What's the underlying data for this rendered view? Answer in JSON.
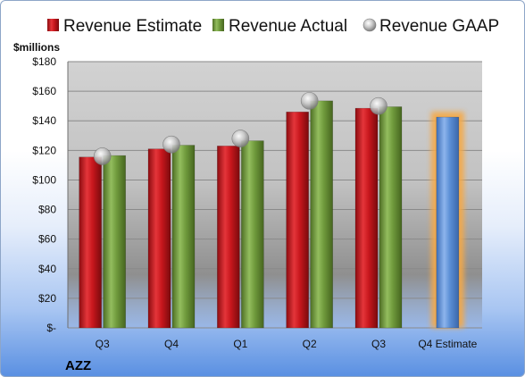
{
  "chart_data": {
    "type": "bar",
    "ticker": "AZZ",
    "ylabel": "$millions",
    "ylim": [
      0,
      180
    ],
    "yticks": [
      0,
      20,
      40,
      60,
      80,
      100,
      120,
      140,
      160,
      180
    ],
    "ytick_labels": [
      "$-",
      "$20",
      "$40",
      "$60",
      "$80",
      "$100",
      "$120",
      "$140",
      "$160",
      "$180"
    ],
    "categories": [
      "Q3",
      "Q4",
      "Q1",
      "Q2",
      "Q3",
      "Q4 Estimate"
    ],
    "legend_position": "top",
    "grid": true,
    "series": [
      {
        "name": "Revenue Estimate",
        "kind": "bar",
        "color": "#c8171d",
        "values": [
          115.5,
          121,
          123,
          146,
          148.5,
          null
        ]
      },
      {
        "name": "Revenue Actual",
        "kind": "bar",
        "color": "#6f9a3c",
        "values": [
          116.5,
          123.5,
          126.5,
          153.5,
          149.5,
          null
        ]
      },
      {
        "name": "Revenue GAAP",
        "kind": "marker",
        "color": "#b0b0b0",
        "values": [
          116,
          124,
          128,
          153.5,
          150,
          null
        ]
      },
      {
        "name": "Q4 Estimate",
        "kind": "bar",
        "color": "#5b8fd6",
        "highlight": "#f5a947",
        "values": [
          null,
          null,
          null,
          null,
          null,
          142.5
        ]
      }
    ]
  }
}
